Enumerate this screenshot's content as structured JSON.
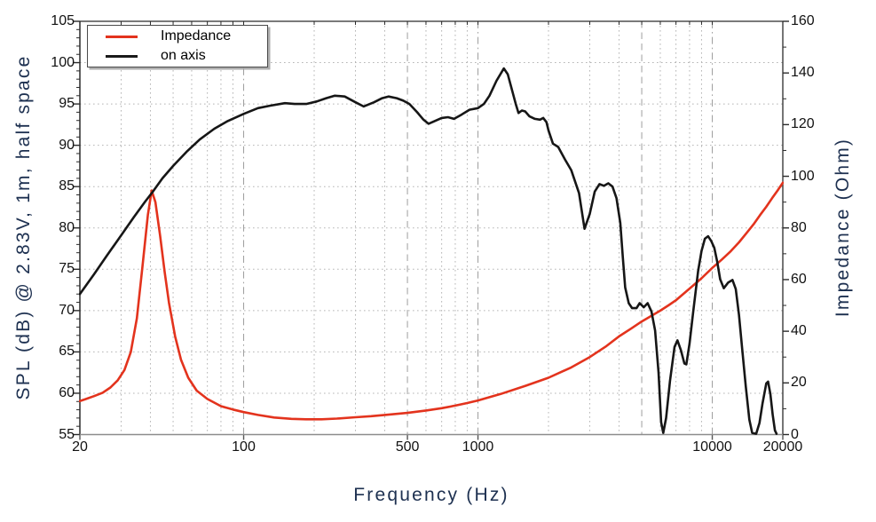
{
  "chart_data": {
    "type": "line",
    "xlabel": "Frequency (Hz)",
    "ylabel_left": "SPL (dB) @ 2.83V, 1m, half space",
    "ylabel_right": "Impedance (Ohm)",
    "x_scale": "log",
    "x_range": [
      20,
      20000
    ],
    "y_left_range": [
      55,
      105
    ],
    "y_left_major_step": 5,
    "y_left_minor_step": 1,
    "y_right_range": [
      0,
      160
    ],
    "y_right_major_step": 20,
    "y_right_minor_step": 10,
    "x_tick_labels": [
      {
        "f": 20,
        "label": "20"
      },
      {
        "f": 100,
        "label": "100"
      },
      {
        "f": 500,
        "label": "500"
      },
      {
        "f": 1000,
        "label": "1000"
      },
      {
        "f": 10000,
        "label": "10000"
      },
      {
        "f": 20000,
        "label": "20000"
      }
    ],
    "grid": {
      "v_dotted": [
        30,
        40,
        50,
        60,
        70,
        80,
        90,
        200,
        300,
        400,
        600,
        700,
        800,
        900,
        2000,
        3000,
        4000,
        6000,
        7000,
        8000,
        9000
      ],
      "v_dashdot": [
        100,
        1000,
        10000
      ],
      "v_dashed": [
        500,
        5000
      ],
      "h_dotted": [
        60,
        65,
        70,
        75,
        80,
        85,
        90,
        95,
        100
      ]
    },
    "legend": {
      "position": "top-left",
      "items": [
        {
          "label": "Impedance",
          "color": "#e3331d"
        },
        {
          "label": "on axis",
          "color": "#1a1a1a"
        }
      ]
    },
    "series": [
      {
        "name": "Impedance",
        "axis": "right",
        "color": "#e3331d",
        "points": [
          [
            20,
            13
          ],
          [
            21,
            13.6
          ],
          [
            23,
            14.9
          ],
          [
            25,
            16.2
          ],
          [
            27,
            18.2
          ],
          [
            29,
            21
          ],
          [
            31,
            25
          ],
          [
            33,
            32
          ],
          [
            35,
            45
          ],
          [
            37,
            65
          ],
          [
            39,
            85
          ],
          [
            40.5,
            94.5
          ],
          [
            42,
            90
          ],
          [
            44,
            77
          ],
          [
            46,
            63
          ],
          [
            48,
            51
          ],
          [
            51,
            38
          ],
          [
            54,
            29
          ],
          [
            58,
            22
          ],
          [
            63,
            17
          ],
          [
            70,
            13.8
          ],
          [
            80,
            11
          ],
          [
            90,
            9.7
          ],
          [
            100,
            8.7
          ],
          [
            115,
            7.6
          ],
          [
            135,
            6.6
          ],
          [
            160,
            6.1
          ],
          [
            185,
            5.9
          ],
          [
            215,
            5.9
          ],
          [
            250,
            6.2
          ],
          [
            300,
            6.7
          ],
          [
            350,
            7.1
          ],
          [
            400,
            7.6
          ],
          [
            500,
            8.4
          ],
          [
            600,
            9.3
          ],
          [
            700,
            10.2
          ],
          [
            800,
            11.2
          ],
          [
            900,
            12.2
          ],
          [
            1000,
            13.2
          ],
          [
            1250,
            15.7
          ],
          [
            1600,
            18.9
          ],
          [
            2000,
            22
          ],
          [
            2500,
            26
          ],
          [
            3000,
            30
          ],
          [
            3500,
            34
          ],
          [
            4000,
            38
          ],
          [
            4500,
            41
          ],
          [
            5000,
            43.8
          ],
          [
            5500,
            46
          ],
          [
            6000,
            48
          ],
          [
            6500,
            50
          ],
          [
            7000,
            52
          ],
          [
            8000,
            56.5
          ],
          [
            9000,
            60.5
          ],
          [
            10000,
            64.5
          ],
          [
            11000,
            67.8
          ],
          [
            12000,
            71
          ],
          [
            13000,
            74.4
          ],
          [
            14000,
            78
          ],
          [
            15000,
            81.4
          ],
          [
            16000,
            85
          ],
          [
            17000,
            88.2
          ],
          [
            18000,
            91.5
          ],
          [
            19000,
            94.5
          ],
          [
            20000,
            97.5
          ]
        ]
      },
      {
        "name": "on axis",
        "axis": "left",
        "color": "#161616",
        "points": [
          [
            20,
            72
          ],
          [
            23,
            74.4
          ],
          [
            26,
            76.6
          ],
          [
            30,
            79.1
          ],
          [
            34,
            81.3
          ],
          [
            38,
            83.2
          ],
          [
            41,
            84.4
          ],
          [
            45,
            86.0
          ],
          [
            50,
            87.5
          ],
          [
            57,
            89.2
          ],
          [
            65,
            90.7
          ],
          [
            75,
            92.0
          ],
          [
            85,
            92.9
          ],
          [
            100,
            93.8
          ],
          [
            115,
            94.5
          ],
          [
            130,
            94.8
          ],
          [
            150,
            95.1
          ],
          [
            165,
            95.0
          ],
          [
            185,
            95.0
          ],
          [
            205,
            95.3
          ],
          [
            225,
            95.7
          ],
          [
            245,
            96.0
          ],
          [
            270,
            95.9
          ],
          [
            300,
            95.2
          ],
          [
            325,
            94.7
          ],
          [
            360,
            95.2
          ],
          [
            390,
            95.7
          ],
          [
            415,
            95.9
          ],
          [
            450,
            95.7
          ],
          [
            480,
            95.4
          ],
          [
            510,
            95.0
          ],
          [
            550,
            94.0
          ],
          [
            585,
            93.1
          ],
          [
            615,
            92.6
          ],
          [
            650,
            92.9
          ],
          [
            700,
            93.3
          ],
          [
            745,
            93.4
          ],
          [
            790,
            93.2
          ],
          [
            850,
            93.7
          ],
          [
            920,
            94.3
          ],
          [
            1000,
            94.5
          ],
          [
            1060,
            95.0
          ],
          [
            1120,
            96.0
          ],
          [
            1200,
            97.8
          ],
          [
            1290,
            99.3
          ],
          [
            1340,
            98.6
          ],
          [
            1400,
            96.6
          ],
          [
            1450,
            95.0
          ],
          [
            1490,
            93.9
          ],
          [
            1540,
            94.2
          ],
          [
            1590,
            94.1
          ],
          [
            1660,
            93.5
          ],
          [
            1750,
            93.2
          ],
          [
            1840,
            93.1
          ],
          [
            1900,
            93.3
          ],
          [
            1960,
            92.8
          ],
          [
            2000,
            91.8
          ],
          [
            2090,
            90.2
          ],
          [
            2200,
            89.8
          ],
          [
            2350,
            88.3
          ],
          [
            2500,
            87.0
          ],
          [
            2700,
            84.2
          ],
          [
            2850,
            79.9
          ],
          [
            3000,
            81.7
          ],
          [
            3150,
            84.4
          ],
          [
            3300,
            85.3
          ],
          [
            3450,
            85.1
          ],
          [
            3600,
            85.4
          ],
          [
            3750,
            85.0
          ],
          [
            3900,
            83.6
          ],
          [
            4050,
            80.6
          ],
          [
            4150,
            76.5
          ],
          [
            4250,
            72.8
          ],
          [
            4400,
            70.9
          ],
          [
            4550,
            70.3
          ],
          [
            4750,
            70.3
          ],
          [
            4900,
            70.9
          ],
          [
            5100,
            70.4
          ],
          [
            5300,
            70.9
          ],
          [
            5500,
            69.9
          ],
          [
            5700,
            67.6
          ],
          [
            5900,
            62.5
          ],
          [
            6050,
            56.5
          ],
          [
            6180,
            55.2
          ],
          [
            6350,
            57.0
          ],
          [
            6600,
            61.5
          ],
          [
            6900,
            65.6
          ],
          [
            7100,
            66.4
          ],
          [
            7350,
            65.2
          ],
          [
            7600,
            63.6
          ],
          [
            7750,
            63.5
          ],
          [
            8000,
            66.0
          ],
          [
            8300,
            70.0
          ],
          [
            8700,
            74.8
          ],
          [
            9000,
            77.2
          ],
          [
            9300,
            78.7
          ],
          [
            9600,
            79.0
          ],
          [
            9900,
            78.4
          ],
          [
            10200,
            77.6
          ],
          [
            10500,
            75.9
          ],
          [
            10800,
            73.8
          ],
          [
            11200,
            72.7
          ],
          [
            11700,
            73.4
          ],
          [
            12200,
            73.7
          ],
          [
            12600,
            72.6
          ],
          [
            13000,
            69.5
          ],
          [
            13400,
            65.5
          ],
          [
            13900,
            60.8
          ],
          [
            14400,
            56.8
          ],
          [
            14800,
            55.2
          ],
          [
            15400,
            55.1
          ],
          [
            15900,
            56.4
          ],
          [
            16400,
            58.8
          ],
          [
            17000,
            61.2
          ],
          [
            17300,
            61.4
          ],
          [
            17700,
            59.9
          ],
          [
            18100,
            57.4
          ],
          [
            18500,
            55.5
          ],
          [
            18800,
            55.1
          ]
        ]
      }
    ],
    "style": {
      "background": "#ffffff",
      "grid_color": "#b5b5b5",
      "grid_major_color": "#9e9e9e",
      "axis_dark_color": "#2b2b2b",
      "axis_light_color": "#8c8c8c",
      "tick_label_color": "#111111",
      "axis_title_color": "#1d3050",
      "curve_width": 2.6
    }
  }
}
